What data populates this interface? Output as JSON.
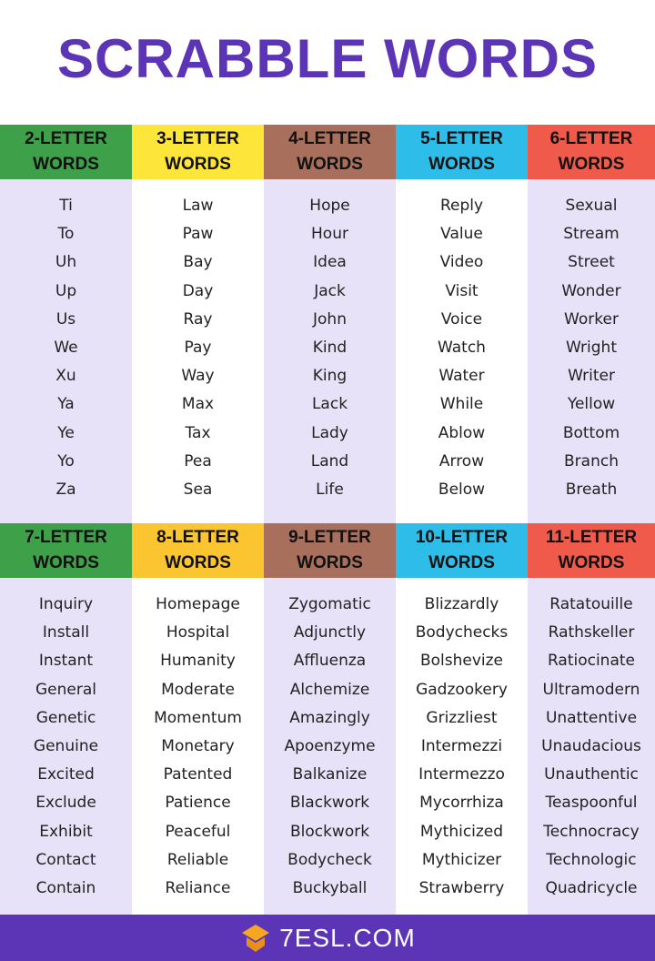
{
  "title": "SCRABBLE WORDS",
  "colors": {
    "title": "#5b35b5",
    "footer": "#5b35b5",
    "alt_column": "#e8e2f8"
  },
  "sections": [
    {
      "columns": [
        {
          "header": [
            "2-LETTER",
            "WORDS"
          ],
          "color": "#3fa04a",
          "words": [
            "Ti",
            "To",
            "Uh",
            "Up",
            "Us",
            "We",
            "Xu",
            "Ya",
            "Ye",
            "Yo",
            "Za"
          ]
        },
        {
          "header": [
            "3-LETTER",
            "WORDS"
          ],
          "color": "#fde53a",
          "words": [
            "Law",
            "Paw",
            "Bay",
            "Day",
            "Ray",
            "Pay",
            "Way",
            "Max",
            "Tax",
            "Pea",
            "Sea"
          ]
        },
        {
          "header": [
            "4-LETTER",
            "WORDS"
          ],
          "color": "#a86f5c",
          "words": [
            "Hope",
            "Hour",
            "Idea",
            "Jack",
            "John",
            "Kind",
            "King",
            "Lack",
            "Lady",
            "Land",
            "Life"
          ]
        },
        {
          "header": [
            "5-LETTER",
            "WORDS"
          ],
          "color": "#2ebde8",
          "words": [
            "Reply",
            "Value",
            "Video",
            "Visit",
            "Voice",
            "Watch",
            "Water",
            "While",
            "Ablow",
            "Arrow",
            "Below"
          ]
        },
        {
          "header": [
            "6-LETTER",
            "WORDS"
          ],
          "color": "#f05a4a",
          "words": [
            "Sexual",
            "Stream",
            "Street",
            "Wonder",
            "Worker",
            "Wright",
            "Writer",
            "Yellow",
            "Bottom",
            "Branch",
            "Breath"
          ]
        }
      ]
    },
    {
      "columns": [
        {
          "header": [
            "7-LETTER",
            "WORDS"
          ],
          "color": "#3fa04a",
          "words": [
            "Inquiry",
            "Install",
            "Instant",
            "General",
            "Genetic",
            "Genuine",
            "Excited",
            "Exclude",
            "Exhibit",
            "Contact",
            "Contain"
          ]
        },
        {
          "header": [
            "8-LETTER",
            "WORDS"
          ],
          "color": "#fbc531",
          "words": [
            "Homepage",
            "Hospital",
            "Humanity",
            "Moderate",
            "Momentum",
            "Monetary",
            "Patented",
            "Patience",
            "Peaceful",
            "Reliable",
            "Reliance"
          ]
        },
        {
          "header": [
            "9-LETTER",
            "WORDS"
          ],
          "color": "#a86f5c",
          "words": [
            "Zygomatic",
            "Adjunctly",
            "Affluenza",
            "Alchemize",
            "Amazingly",
            "Apoenzyme",
            "Balkanize",
            "Blackwork",
            "Blockwork",
            "Bodycheck",
            "Buckyball"
          ]
        },
        {
          "header": [
            "10-LETTER",
            "WORDS"
          ],
          "color": "#2ebde8",
          "words": [
            "Blizzardly",
            "Bodychecks",
            "Bolshevize",
            "Gadzookery",
            "Grizzliest",
            "Intermezzi",
            "Intermezzo",
            "Mycorrhiza",
            "Mythicized",
            "Mythicizer",
            "Strawberry"
          ]
        },
        {
          "header": [
            "11-LETTER",
            "WORDS"
          ],
          "color": "#f05a4a",
          "words": [
            "Ratatouille",
            "Rathskeller",
            "Ratiocinate",
            "Ultramodern",
            "Unattentive",
            "Unaudacious",
            "Unauthentic",
            "Teaspoonful",
            "Technocracy",
            "Technologic",
            "Quadricycle"
          ]
        }
      ]
    }
  ],
  "footer": {
    "logo": "7ESL.COM",
    "logo_color": "#f5a623"
  }
}
